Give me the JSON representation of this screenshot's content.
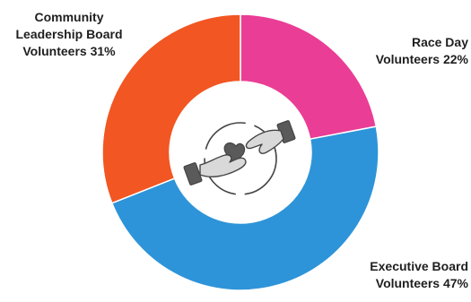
{
  "chart_data": {
    "type": "donut",
    "slices": [
      {
        "label_lines": [
          "Race Day",
          "Volunteers 22%"
        ],
        "value": 22,
        "color": "#ea3d95"
      },
      {
        "label_lines": [
          "Executive Board",
          "Volunteers 47%"
        ],
        "value": 47,
        "color": "#2e94d9"
      },
      {
        "label_lines": [
          "Community",
          "Leadership Board",
          "Volunteers 31%"
        ],
        "value": 31,
        "color": "#f25622"
      }
    ],
    "start_angle_deg": 0,
    "direction": "clockwise",
    "center_icon": "hands-giving-heart-icon",
    "icon_colors": {
      "stroke": "#444444",
      "fill": "#d9d9d9",
      "dark": "#5a5a5a"
    }
  }
}
